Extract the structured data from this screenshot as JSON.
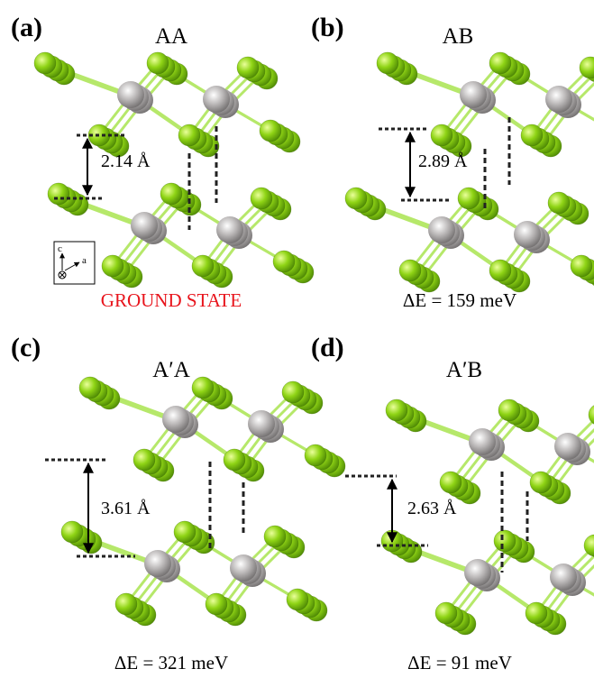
{
  "panels": [
    {
      "label": "(a)",
      "title": "AA",
      "distance": "2.14 Å",
      "caption": "GROUND STATE",
      "axis_labels": [
        "c",
        "a"
      ]
    },
    {
      "label": "(b)",
      "title": "AB",
      "distance": "2.89 Å",
      "caption": "ΔE = 159 meV"
    },
    {
      "label": "(c)",
      "title": "A′A",
      "distance": "3.61 Å",
      "caption": "ΔE = 321 meV"
    },
    {
      "label": "(d)",
      "title": "A′B",
      "distance": "2.63 Å",
      "caption": "ΔE = 91 meV"
    }
  ]
}
